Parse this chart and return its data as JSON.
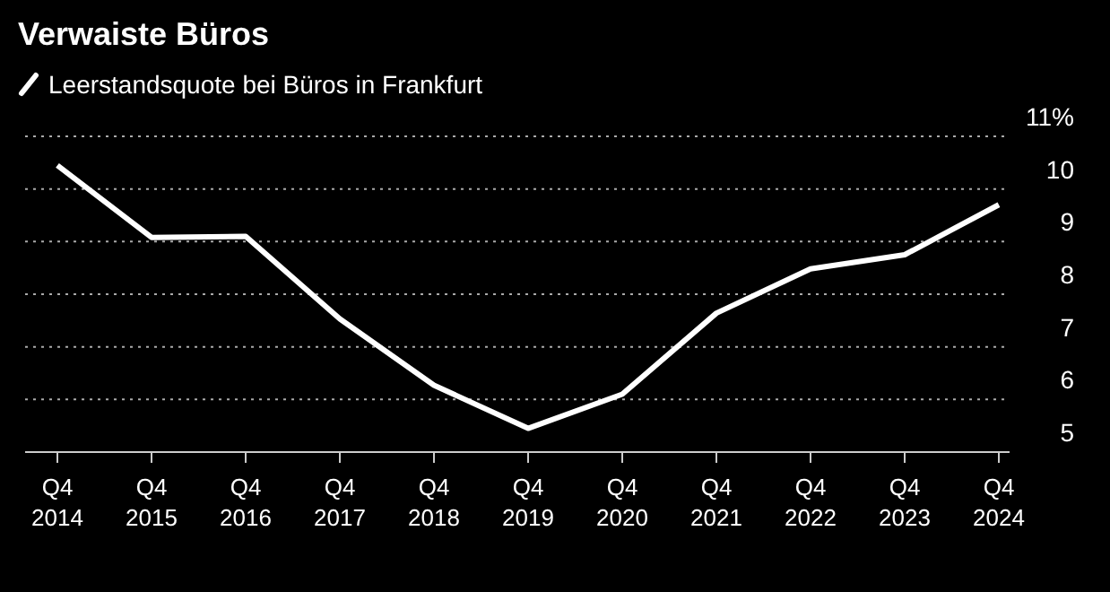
{
  "chart_data": {
    "type": "line",
    "title": "Verwaiste Büros",
    "categories": [
      "Q4\n2014",
      "Q4\n2015",
      "Q4\n2016",
      "Q4\n2017",
      "Q4\n2018",
      "Q4\n2019",
      "Q4\n2020",
      "Q4\n2021",
      "Q4\n2022",
      "Q4\n2023",
      "Q4\n2024"
    ],
    "series": [
      {
        "name": "Leerstandsquote bei Büros in Frankfurt",
        "color": "#ffffff",
        "values": [
          10.45,
          9.08,
          9.1,
          7.53,
          6.27,
          5.45,
          6.1,
          7.64,
          8.48,
          8.75,
          9.7
        ]
      }
    ],
    "ylim": [
      5,
      11
    ],
    "yticks": [
      5,
      6,
      7,
      8,
      9,
      10,
      {
        "value": 11,
        "label": "11%"
      }
    ],
    "grid": "y",
    "legend": "top left",
    "line_style": "solid",
    "marker": "none"
  }
}
